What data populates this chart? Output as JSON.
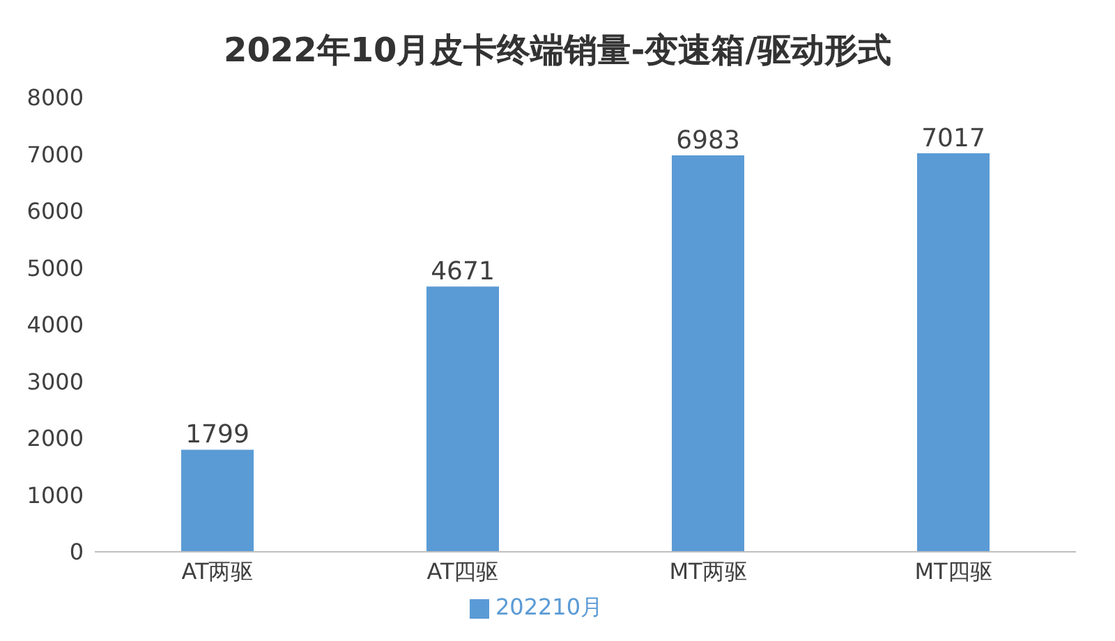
{
  "chart_data": {
    "type": "bar",
    "title": "2022年10月皮卡终端销量-变速箱/驱动形式",
    "categories": [
      "AT两驱",
      "AT四驱",
      "MT两驱",
      "MT四驱"
    ],
    "series": [
      {
        "name": "202210月",
        "color": "#5b9bd5",
        "values": [
          1799,
          4671,
          6983,
          7017
        ]
      }
    ],
    "ylim": [
      0,
      8000
    ],
    "yticks": [
      0,
      1000,
      2000,
      3000,
      4000,
      5000,
      6000,
      7000,
      8000
    ],
    "grid": false,
    "legend": "bottom",
    "data_labels": true
  }
}
